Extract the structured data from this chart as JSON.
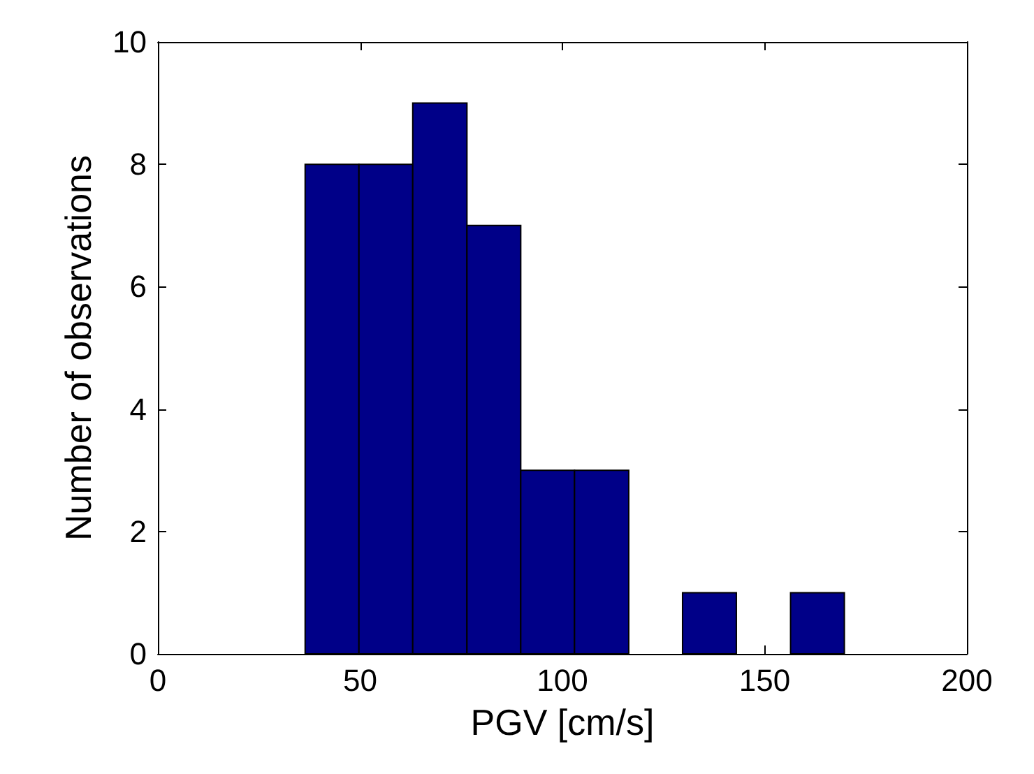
{
  "chart_data": {
    "type": "histogram",
    "xlabel": "PGV [cm/s]",
    "ylabel": "Number of observations",
    "bins": [
      36.4,
      49.7,
      63.0,
      76.4,
      89.7,
      103.0,
      116.4,
      129.7,
      143.0,
      156.4,
      169.7
    ],
    "values": [
      8,
      8,
      9,
      7,
      3,
      3,
      0,
      1,
      0,
      1
    ],
    "color": "#000088",
    "xlim": [
      0,
      200
    ],
    "xticks": [
      0,
      50,
      100,
      150,
      200
    ],
    "ylim": [
      0,
      10
    ],
    "yticks": [
      0,
      2,
      4,
      6,
      8,
      10
    ],
    "grid": false
  }
}
